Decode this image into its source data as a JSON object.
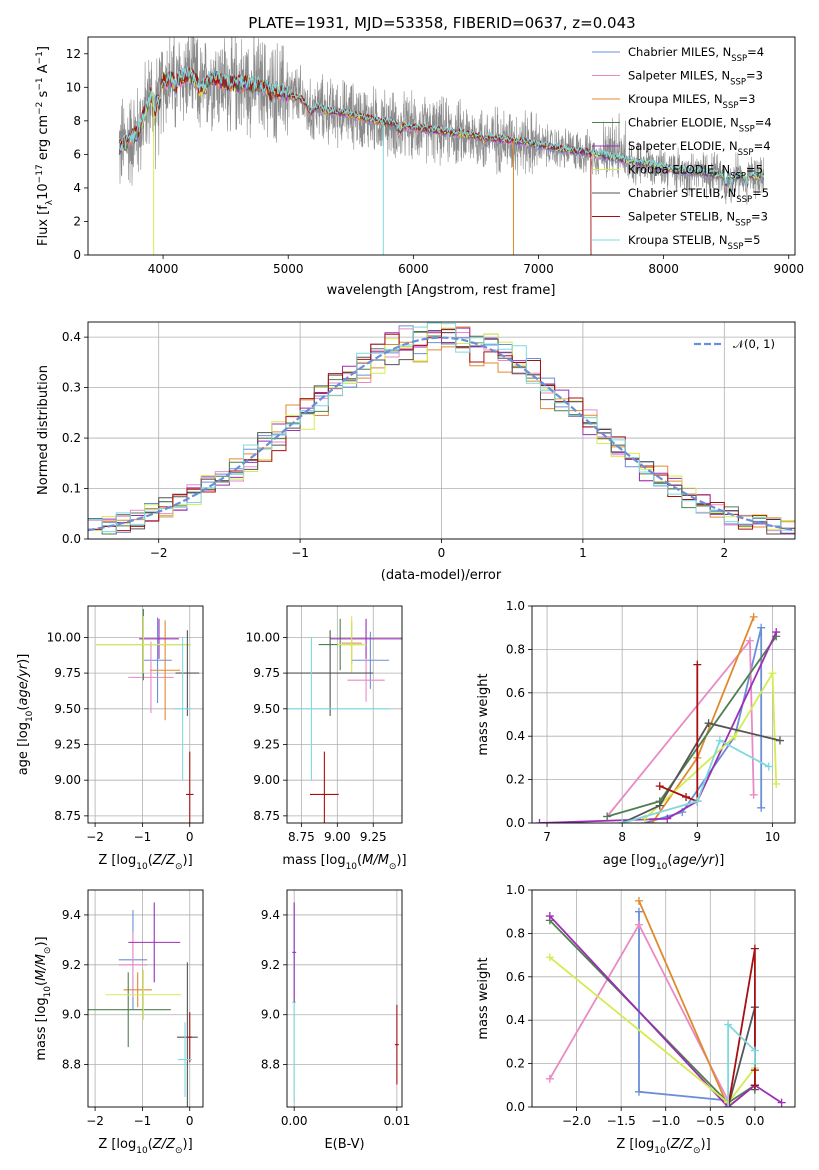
{
  "figure": {
    "title": "PLATE=1931, MJD=53358, FIBERID=0637, z=0.043"
  },
  "colors": {
    "Chabrier MILES": "#6a8fd8",
    "Salpeter MILES": "#e98ac4",
    "Kroupa MILES": "#e08a2f",
    "Chabrier ELODIE": "#4f7f4f",
    "Salpeter ELODIE": "#9b2fb5",
    "Kroupa ELODIE": "#d4ec52",
    "Chabrier STELIB": "#555555",
    "Salpeter STELIB": "#a81010",
    "Kroupa STELIB": "#7fd9de",
    "data": "#8a8a8a",
    "normal": "#6a8fd8"
  },
  "chart_data": [
    {
      "type": "line",
      "id": "spectrum",
      "xlabel": "wavelength [Angstrom, rest frame]",
      "ylabel": "Flux [f_λ 10^-17 erg cm^-2 s^-1 A^-1]",
      "xlim": [
        3400,
        9050
      ],
      "ylim": [
        0,
        13
      ],
      "xticks": [
        4000,
        5000,
        6000,
        7000,
        8000,
        9000
      ],
      "yticks": [
        0,
        2,
        4,
        6,
        8,
        10,
        12
      ],
      "legend": {
        "placement": "top-right",
        "entries": [
          {
            "base": "Chabrier MILES, N",
            "sub": "SSP",
            "tail": "=4"
          },
          {
            "base": "Salpeter MILES, N",
            "sub": "SSP",
            "tail": "=3"
          },
          {
            "base": "Kroupa MILES, N",
            "sub": "SSP",
            "tail": "=3"
          },
          {
            "base": "Chabrier ELODIE, N",
            "sub": "SSP",
            "tail": "=4"
          },
          {
            "base": "Salpeter ELODIE, N",
            "sub": "SSP",
            "tail": "=4"
          },
          {
            "base": "Kroupa ELODIE, N",
            "sub": "SSP",
            "tail": "=5"
          },
          {
            "base": "Chabrier STELIB, N",
            "sub": "SSP",
            "tail": "=5"
          },
          {
            "base": "Salpeter STELIB, N",
            "sub": "SSP",
            "tail": "=3"
          },
          {
            "base": "Kroupa STELIB, N",
            "sub": "SSP",
            "tail": "=5"
          }
        ]
      },
      "data_range": [
        3650,
        8800
      ],
      "model_points": {
        "x": [
          3650,
          3800,
          3900,
          4000,
          4100,
          4200,
          4300,
          4400,
          4500,
          4700,
          4900,
          5100,
          5300,
          5500,
          5700,
          6000,
          6300,
          6600,
          6900,
          7200,
          7400,
          7600,
          7800,
          8000,
          8200,
          8400,
          8600,
          8800
        ],
        "y": [
          6.4,
          7.3,
          9.5,
          10.4,
          10.5,
          10.7,
          10.3,
          10.6,
          10.2,
          10.2,
          9.8,
          9.3,
          8.6,
          8.4,
          8.0,
          7.6,
          7.3,
          7.0,
          6.7,
          6.3,
          6.1,
          5.8,
          5.5,
          5.2,
          5.0,
          4.8,
          4.7,
          4.7
        ]
      },
      "model_cutoffs": {
        "Salpeter STELIB": 7420,
        "Kroupa MILES": 6800
      },
      "dips": [
        {
          "series": "Kroupa ELODIE",
          "x": 3925
        },
        {
          "series": "Kroupa STELIB",
          "x": 5760
        },
        {
          "series": "Kroupa MILES",
          "x": 6800
        }
      ]
    },
    {
      "type": "bar",
      "id": "residuals",
      "xlabel": "(data-model)/error",
      "ylabel": "Normed distribution",
      "xlim": [
        -2.5,
        2.5
      ],
      "ylim": [
        0,
        0.43
      ],
      "xticks": [
        -2,
        -1,
        0,
        1,
        2
      ],
      "yticks": [
        0.0,
        0.1,
        0.2,
        0.3,
        0.4
      ],
      "bin_width": 0.1,
      "series_count": 9,
      "legend": {
        "placement": "top-right",
        "label": "𝒩(0, 1)"
      },
      "grid": true
    },
    {
      "type": "scatter",
      "id": "age-vs-Z",
      "xlabel": "Z [log10(Z/Z⊙)]",
      "ylabel": "age [log10(age/yr)]",
      "xlim": [
        -2.15,
        0.28
      ],
      "ylim": [
        8.7,
        10.22
      ],
      "xticks": [
        -2,
        -1,
        0
      ],
      "yticks": [
        8.75,
        9.0,
        9.25,
        9.5,
        9.75,
        10.0
      ],
      "points": [
        {
          "series": "Chabrier MILES",
          "x": -0.68,
          "xerr": 0.3,
          "y": 9.84,
          "yerr": 0.3
        },
        {
          "series": "Salpeter MILES",
          "x": -0.82,
          "xerr": 0.48,
          "y": 9.72,
          "yerr": 0.25
        },
        {
          "series": "Kroupa MILES",
          "x": -0.52,
          "xerr": 0.32,
          "y": 9.77,
          "yerr": 0.35
        },
        {
          "series": "Chabrier ELODIE",
          "x": -0.98,
          "xerr": 1.0,
          "y": 9.95,
          "yerr": 0.25
        },
        {
          "series": "Salpeter ELODIE",
          "x": -0.65,
          "xerr": 0.42,
          "y": 9.99,
          "yerr": 0.14
        },
        {
          "series": "Kroupa ELODIE",
          "x": -0.98,
          "xerr": 1.0,
          "y": 9.95,
          "yerr": 0.2
        },
        {
          "series": "Chabrier STELIB",
          "x": -0.05,
          "xerr": 0.25,
          "y": 9.75,
          "yerr": 0.3
        },
        {
          "series": "Salpeter STELIB",
          "x": 0.0,
          "xerr": 0.08,
          "y": 8.9,
          "yerr": 0.3
        },
        {
          "series": "Kroupa STELIB",
          "x": -0.15,
          "xerr": 0.18,
          "y": 9.5,
          "yerr": 0.5
        }
      ]
    },
    {
      "type": "scatter",
      "id": "age-vs-mass",
      "xlabel": "mass [log10(M/M⊙)]",
      "ylabel": "",
      "xlim": [
        8.65,
        9.45
      ],
      "ylim": [
        8.7,
        10.22
      ],
      "xticks": [
        8.75,
        9.0,
        9.25
      ],
      "yticks": [
        8.75,
        9.0,
        9.25,
        9.5,
        9.75,
        10.0
      ],
      "points": [
        {
          "series": "Chabrier MILES",
          "x": 9.23,
          "xerr": 0.13,
          "y": 9.84,
          "yerr": 0.2
        },
        {
          "series": "Salpeter MILES",
          "x": 9.2,
          "xerr": 0.13,
          "y": 9.7,
          "yerr": 0.15
        },
        {
          "series": "Kroupa MILES",
          "x": 9.1,
          "xerr": 0.07,
          "y": 9.96,
          "yerr": 0.15
        },
        {
          "series": "Chabrier ELODIE",
          "x": 9.02,
          "xerr": 0.15,
          "y": 9.95,
          "yerr": 0.18
        },
        {
          "series": "Salpeter ELODIE",
          "x": 9.2,
          "xerr": 0.25,
          "y": 9.99,
          "yerr": 0.14
        },
        {
          "series": "Kroupa ELODIE",
          "x": 9.1,
          "xerr": 0.1,
          "y": 9.95,
          "yerr": 0.2
        },
        {
          "series": "Chabrier STELIB",
          "x": 8.95,
          "xerr": 0.3,
          "y": 9.75,
          "yerr": 0.3
        },
        {
          "series": "Salpeter STELIB",
          "x": 8.91,
          "xerr": 0.1,
          "y": 8.9,
          "yerr": 0.3
        },
        {
          "series": "Kroupa STELIB",
          "x": 8.82,
          "xerr": 0.55,
          "y": 9.5,
          "yerr": 0.5
        }
      ]
    },
    {
      "type": "line",
      "id": "mass-weight-vs-age",
      "xlabel": "age [log10(age/yr)]",
      "ylabel": "mass weight",
      "xlim": [
        6.8,
        10.3
      ],
      "ylim": [
        0,
        1.0
      ],
      "xticks": [
        7,
        8,
        9,
        10
      ],
      "yticks": [
        0.0,
        0.2,
        0.4,
        0.6,
        0.8,
        1.0
      ],
      "series": [
        {
          "name": "Chabrier MILES",
          "x": [
            8.3,
            8.8,
            9.5,
            9.85,
            9.85
          ],
          "y": [
            0.0,
            0.05,
            0.4,
            0.9,
            0.07
          ]
        },
        {
          "name": "Salpeter MILES",
          "x": [
            7.8,
            9.7,
            9.75
          ],
          "y": [
            0.03,
            0.84,
            0.13
          ]
        },
        {
          "name": "Kroupa MILES",
          "x": [
            8.4,
            9.0,
            9.75
          ],
          "y": [
            0.0,
            0.3,
            0.95
          ]
        },
        {
          "name": "Chabrier ELODIE",
          "x": [
            7.8,
            8.5,
            10.05
          ],
          "y": [
            0.03,
            0.1,
            0.86
          ]
        },
        {
          "name": "Salpeter ELODIE",
          "x": [
            6.9,
            8.6,
            9.0,
            10.05
          ],
          "y": [
            0.0,
            0.02,
            0.1,
            0.88
          ]
        },
        {
          "name": "Kroupa ELODIE",
          "x": [
            8.3,
            9.5,
            10.0,
            10.05
          ],
          "y": [
            0.02,
            0.4,
            0.69,
            0.18
          ]
        },
        {
          "name": "Chabrier STELIB",
          "x": [
            8.0,
            8.5,
            9.15,
            10.1
          ],
          "y": [
            0.0,
            0.08,
            0.46,
            0.38
          ]
        },
        {
          "name": "Salpeter STELIB",
          "x": [
            8.5,
            8.85,
            9.0,
            9.0
          ],
          "y": [
            0.17,
            0.12,
            0.1,
            0.73
          ]
        },
        {
          "name": "Kroupa STELIB",
          "x": [
            8.0,
            9.0,
            9.3,
            9.95
          ],
          "y": [
            0.0,
            0.1,
            0.38,
            0.26
          ]
        }
      ]
    },
    {
      "type": "scatter",
      "id": "mass-vs-Z",
      "xlabel": "Z [log10(Z/Z⊙)]",
      "ylabel": "mass [log10(M/M⊙)]",
      "xlim": [
        -2.15,
        0.28
      ],
      "ylim": [
        8.63,
        9.5
      ],
      "xticks": [
        -2,
        -1,
        0
      ],
      "yticks": [
        8.8,
        9.0,
        9.2,
        9.4
      ],
      "points": [
        {
          "series": "Chabrier MILES",
          "x": -1.2,
          "xerr": 0.3,
          "y": 9.22,
          "yerr": 0.2
        },
        {
          "series": "Salpeter MILES",
          "x": -1.2,
          "xerr": 0.3,
          "y": 9.2,
          "yerr": 0.13
        },
        {
          "series": "Kroupa MILES",
          "x": -1.1,
          "xerr": 0.3,
          "y": 9.1,
          "yerr": 0.07
        },
        {
          "series": "Chabrier ELODIE",
          "x": -1.3,
          "xerr": 0.9,
          "y": 9.02,
          "yerr": 0.15
        },
        {
          "series": "Salpeter ELODIE",
          "x": -0.75,
          "xerr": 0.55,
          "y": 9.29,
          "yerr": 0.16
        },
        {
          "series": "Kroupa ELODIE",
          "x": -0.98,
          "xerr": 0.8,
          "y": 9.08,
          "yerr": 0.1
        },
        {
          "series": "Chabrier STELIB",
          "x": -0.05,
          "xerr": 0.22,
          "y": 8.91,
          "yerr": 0.3
        },
        {
          "series": "Salpeter STELIB",
          "x": 0.0,
          "xerr": 0.05,
          "y": 8.91,
          "yerr": 0.1
        },
        {
          "series": "Kroupa STELIB",
          "x": -0.1,
          "xerr": 0.15,
          "y": 8.82,
          "yerr": 0.15
        }
      ]
    },
    {
      "type": "scatter",
      "id": "mass-vs-EBV",
      "xlabel": "E(B-V)",
      "ylabel": "",
      "xlim": [
        -0.0007,
        0.0105
      ],
      "ylim": [
        8.63,
        9.5
      ],
      "xticks": [
        0.0,
        0.01
      ],
      "yticks": [
        8.8,
        9.0,
        9.2,
        9.4
      ],
      "points": [
        {
          "series": "Kroupa STELIB",
          "x": 0.0,
          "y": 9.05,
          "yerr": 0.4
        },
        {
          "series": "Salpeter ELODIE",
          "x": 0.0,
          "y": 9.25,
          "yerr": 0.2
        },
        {
          "series": "Salpeter STELIB",
          "x": 0.01,
          "y": 8.88,
          "yerr": 0.16
        }
      ]
    },
    {
      "type": "line",
      "id": "mass-weight-vs-Z",
      "xlabel": "Z [log10(Z/Z⊙)]",
      "ylabel": "mass weight",
      "xlim": [
        -2.5,
        0.45
      ],
      "ylim": [
        0,
        1.0
      ],
      "xticks": [
        -2.0,
        -1.5,
        -1.0,
        -0.5,
        0.0
      ],
      "yticks": [
        0.0,
        0.2,
        0.4,
        0.6,
        0.8,
        1.0
      ],
      "series": [
        {
          "name": "Chabrier MILES",
          "x": [
            -1.3,
            -1.3,
            -0.3
          ],
          "y": [
            0.9,
            0.07,
            0.03
          ]
        },
        {
          "name": "Salpeter MILES",
          "x": [
            -2.3,
            -1.3,
            -0.3
          ],
          "y": [
            0.13,
            0.84,
            0.03
          ]
        },
        {
          "name": "Kroupa MILES",
          "x": [
            -1.3,
            -0.3,
            0.0
          ],
          "y": [
            0.95,
            0.0,
            0.1
          ]
        },
        {
          "name": "Chabrier ELODIE",
          "x": [
            -2.3,
            -0.3,
            0.0
          ],
          "y": [
            0.86,
            0.02,
            0.1
          ]
        },
        {
          "name": "Salpeter ELODIE",
          "x": [
            -2.3,
            -0.3,
            0.0,
            0.3
          ],
          "y": [
            0.88,
            0.0,
            0.1,
            0.02
          ]
        },
        {
          "name": "Kroupa ELODIE",
          "x": [
            -2.3,
            -0.3,
            0.0
          ],
          "y": [
            0.69,
            0.02,
            0.18
          ]
        },
        {
          "name": "Chabrier STELIB",
          "x": [
            -0.3,
            0.0,
            0.0
          ],
          "y": [
            0.0,
            0.46,
            0.08
          ]
        },
        {
          "name": "Salpeter STELIB",
          "x": [
            -0.3,
            0.0,
            0.0,
            0.0
          ],
          "y": [
            0.0,
            0.73,
            0.17,
            0.1
          ]
        },
        {
          "name": "Kroupa STELIB",
          "x": [
            -0.3,
            -0.3,
            0.0,
            0.0
          ],
          "y": [
            0.0,
            0.38,
            0.26,
            0.2
          ]
        }
      ]
    }
  ]
}
